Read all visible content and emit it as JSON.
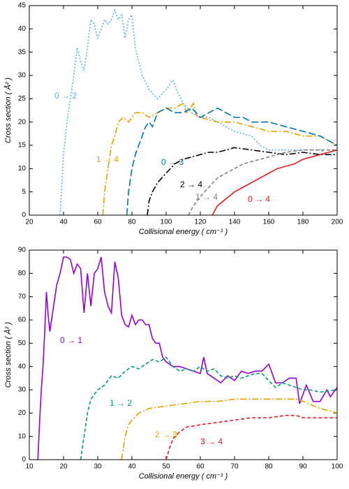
{
  "chart_data": [
    {
      "type": "line",
      "xlabel": "Collisional energy ( cm⁻¹ )",
      "ylabel": "Cross section ( Å² )",
      "xlim": [
        20,
        200
      ],
      "ylim": [
        0,
        45
      ],
      "xticks": [
        20,
        40,
        60,
        80,
        100,
        120,
        140,
        160,
        180,
        200
      ],
      "yticks": [
        0,
        5,
        10,
        15,
        20,
        25,
        30,
        35,
        40,
        45
      ],
      "series": [
        {
          "name": "0 → 2",
          "color": "#56b4e9",
          "dash": "dotted",
          "x": [
            38,
            40,
            42,
            44,
            46,
            48,
            50,
            52,
            54,
            56,
            58,
            60,
            62,
            64,
            66,
            68,
            70,
            72,
            74,
            76,
            78,
            80,
            82,
            84,
            86,
            90,
            95,
            100,
            104,
            106,
            110,
            115,
            120,
            125,
            130,
            140,
            150,
            155,
            160,
            170,
            180,
            190,
            195,
            200
          ],
          "values": [
            0,
            13,
            20,
            25,
            30,
            36,
            33,
            31,
            36,
            42,
            41,
            38,
            40,
            42,
            41,
            42,
            44,
            42,
            43,
            38,
            42,
            43,
            36,
            33,
            30,
            27,
            25,
            27,
            29,
            27,
            24,
            22,
            21,
            21,
            20,
            18,
            17,
            15,
            14,
            14,
            14,
            14,
            13,
            13
          ]
        },
        {
          "name": "1 → 4",
          "color": "#e69f00",
          "dash": "dashdot",
          "x": [
            63,
            64,
            66,
            68,
            70,
            72,
            75,
            78,
            82,
            86,
            90,
            95,
            100,
            105,
            110,
            112,
            114,
            116,
            118,
            120,
            130,
            140,
            150,
            160,
            170,
            180,
            190,
            200
          ],
          "values": [
            0,
            5,
            10,
            15,
            17,
            20,
            21,
            20,
            22,
            22,
            21,
            22,
            23,
            23,
            24,
            22,
            23,
            24,
            21,
            21,
            20,
            20,
            19,
            18,
            18,
            17,
            17,
            15
          ]
        },
        {
          "name": "0 → 3",
          "color": "#0072b2",
          "dash": "longdash",
          "x": [
            77,
            78,
            80,
            82,
            84,
            86,
            88,
            90,
            92,
            95,
            100,
            105,
            110,
            115,
            120,
            125,
            130,
            135,
            140,
            145,
            150,
            160,
            170,
            180,
            190,
            195,
            200
          ],
          "values": [
            0,
            5,
            10,
            13,
            15,
            17,
            19,
            20,
            19,
            22,
            23,
            22,
            22,
            23,
            21,
            22,
            23,
            22,
            21,
            21,
            20,
            20,
            19,
            18,
            17,
            16,
            15
          ]
        },
        {
          "name": "2 → 4",
          "color": "#000000",
          "dash": "dashdot",
          "x": [
            89,
            90,
            92,
            95,
            100,
            105,
            110,
            115,
            120,
            125,
            130,
            135,
            140,
            150,
            160,
            170,
            180,
            190,
            200
          ],
          "values": [
            0,
            3,
            5,
            7,
            9,
            11,
            12,
            12.5,
            13,
            13.5,
            13.5,
            14,
            14.5,
            14,
            13.5,
            13,
            13.5,
            13,
            13
          ]
        },
        {
          "name": "1 → 4",
          "color": "#808080",
          "dash": "dashed",
          "x": [
            113,
            116,
            120,
            125,
            130,
            135,
            140,
            145,
            150,
            155,
            160,
            165,
            170,
            180,
            190,
            200
          ],
          "values": [
            0,
            2,
            4,
            6,
            8,
            9,
            10,
            11,
            11.5,
            12,
            12.5,
            13,
            13.5,
            14,
            14,
            14
          ]
        },
        {
          "name": "0 → 4",
          "color": "#e41a1c",
          "dash": "solid",
          "x": [
            127,
            130,
            135,
            140,
            145,
            150,
            155,
            160,
            165,
            170,
            175,
            180,
            185,
            190,
            195,
            200
          ],
          "values": [
            0,
            2,
            3.5,
            5,
            6,
            7,
            8,
            9,
            10,
            10.5,
            11,
            12,
            12.5,
            13,
            13.5,
            14
          ]
        }
      ]
    },
    {
      "type": "line",
      "xlabel": "Collisional energy ( cm⁻¹ )",
      "ylabel": "Cross section ( Å² )",
      "xlim": [
        10,
        100
      ],
      "ylim": [
        0,
        90
      ],
      "xticks": [
        10,
        20,
        30,
        40,
        50,
        60,
        70,
        80,
        90,
        100
      ],
      "yticks": [
        0,
        10,
        20,
        30,
        40,
        50,
        60,
        70,
        80,
        90
      ],
      "series": [
        {
          "name": "0 → 1",
          "color": "#9400d3",
          "dash": "solid",
          "x": [
            12.5,
            13,
            13.5,
            14,
            14.5,
            15,
            15.5,
            16,
            17,
            18,
            19,
            20,
            21,
            22,
            23,
            24,
            25,
            26,
            27,
            28,
            29,
            30,
            31,
            32,
            33,
            34,
            35,
            36,
            37,
            38,
            39,
            40,
            41,
            42,
            43,
            44,
            45,
            46,
            47,
            48,
            49,
            50,
            52,
            54,
            56,
            58,
            60,
            61,
            62,
            64,
            66,
            68,
            70,
            72,
            74,
            76,
            78,
            80,
            82,
            84,
            86,
            88,
            89,
            91,
            93,
            95,
            97,
            98,
            100
          ],
          "values": [
            0,
            16,
            30,
            40,
            55,
            72,
            62,
            55,
            65,
            75,
            80,
            87,
            87,
            86,
            80,
            84,
            82,
            63,
            80,
            66,
            80,
            82,
            87,
            72,
            66,
            63,
            85,
            78,
            62,
            58,
            57,
            62,
            58,
            60,
            60,
            58,
            58,
            52,
            50,
            50,
            44,
            42,
            40,
            40,
            39,
            38,
            37,
            44,
            37,
            35,
            33,
            36,
            34,
            38,
            37,
            38,
            38,
            41,
            33,
            33,
            35,
            35,
            24,
            32,
            25,
            25,
            30,
            27,
            31
          ]
        },
        {
          "name": "1 → 2",
          "color": "#009e73",
          "dash": "dashed",
          "x": [
            25,
            26,
            27,
            28,
            30,
            32,
            34,
            36,
            38,
            40,
            42,
            44,
            46,
            48,
            50,
            52,
            54,
            56,
            58,
            60,
            62,
            64,
            66,
            68,
            70,
            72,
            74,
            76,
            78,
            80,
            82,
            84,
            86,
            88,
            90,
            92,
            95,
            100
          ],
          "values": [
            0,
            10,
            20,
            26,
            30,
            32,
            36,
            35,
            38,
            40,
            39,
            41,
            43,
            42,
            44,
            40,
            38,
            39,
            38,
            40,
            38,
            39,
            36,
            35,
            36,
            35,
            36,
            37,
            37,
            34,
            31,
            33,
            32,
            31,
            30,
            30,
            29,
            30
          ]
        },
        {
          "name": "2 → 3",
          "color": "#e69f00",
          "dash": "dashdot",
          "x": [
            37,
            37.5,
            38,
            39,
            40,
            42,
            45,
            50,
            55,
            60,
            65,
            70,
            75,
            80,
            85,
            88,
            90,
            95,
            100
          ],
          "values": [
            0,
            5,
            10,
            15,
            17,
            20,
            22,
            23,
            24,
            25,
            25,
            26,
            26,
            26,
            26,
            26,
            25,
            22,
            20
          ]
        },
        {
          "name": "3 → 4",
          "color": "#e41a1c",
          "dash": "dashed",
          "x": [
            50,
            51,
            52,
            54,
            56,
            60,
            65,
            70,
            75,
            80,
            85,
            88,
            90,
            95,
            100
          ],
          "values": [
            0,
            5,
            9,
            12,
            14,
            15,
            16,
            17,
            18,
            18,
            19,
            19,
            18,
            18,
            18
          ]
        }
      ]
    }
  ]
}
